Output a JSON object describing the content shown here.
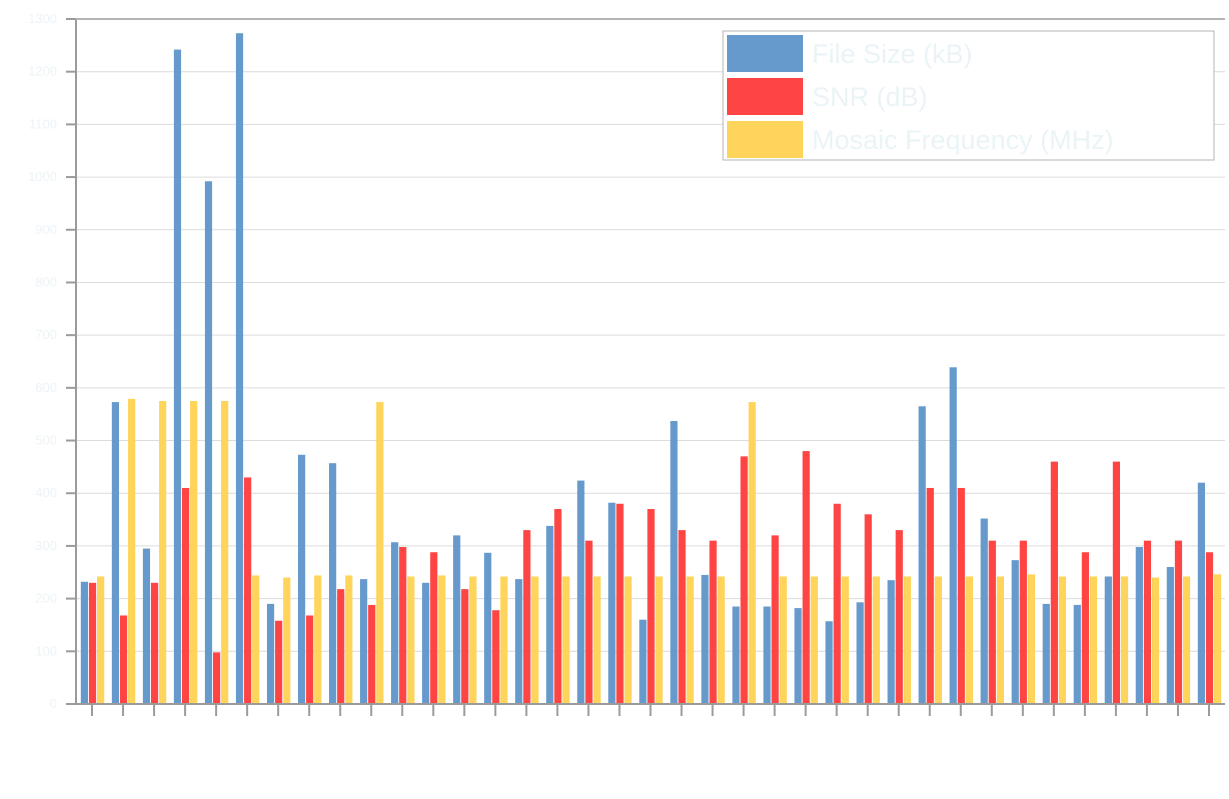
{
  "chart_data": {
    "type": "bar",
    "title": "",
    "xlabel": "",
    "ylabel": "",
    "ylim": [
      0,
      1300
    ],
    "yticks": [
      0,
      100,
      200,
      300,
      400,
      500,
      600,
      700,
      800,
      900,
      1000,
      1100,
      1200,
      1300
    ],
    "grid": true,
    "legend_position": "top-right",
    "category_count": 37,
    "series": [
      {
        "name": "File Size (kB)",
        "color": "#6699cc",
        "values": [
          232,
          573,
          295,
          1242,
          992,
          1273,
          190,
          473,
          457,
          237,
          307,
          230,
          320,
          287,
          237,
          338,
          424,
          382,
          160,
          537,
          245,
          185,
          185,
          182,
          157,
          193,
          235,
          565,
          639,
          352,
          273,
          190,
          188,
          242,
          298,
          260,
          420
        ]
      },
      {
        "name": "SNR (dB)",
        "color": "#ff4444",
        "values": [
          230,
          168,
          230,
          410,
          98,
          430,
          158,
          168,
          218,
          188,
          298,
          288,
          218,
          178,
          330,
          370,
          310,
          380,
          370,
          330,
          310,
          470,
          320,
          480,
          380,
          360,
          330,
          410,
          410,
          310,
          310,
          460,
          288,
          460,
          310,
          310,
          288
        ]
      },
      {
        "name": "Mosaic Frequency (MHz)",
        "color": "#ffd45a",
        "values": [
          242,
          579,
          575,
          575,
          575,
          244,
          240,
          244,
          244,
          573,
          242,
          244,
          242,
          242,
          242,
          242,
          242,
          242,
          242,
          242,
          242,
          573,
          242,
          242,
          242,
          242,
          242,
          242,
          242,
          242,
          246,
          242,
          242,
          242,
          240,
          242,
          246
        ]
      }
    ]
  }
}
